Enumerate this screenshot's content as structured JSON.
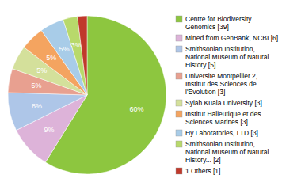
{
  "chart_data": {
    "type": "pie",
    "categories": [
      "Centre for Biodiversity\nGenomics [39]",
      "Mined from GenBank, NCBI [6]",
      "Smithsonian Institution,\nNational Museum of Natural\nHistory [5]",
      "Universite Montpellier 2,\nInstitut des Sciences de\nl'Evolution [3]",
      "Syiah Kuala University [3]",
      "Institut Halieutique et des\nSciences Marines [3]",
      "Hy Laboratories, LTD [3]",
      "Smithsonian Institution,\nNational Museum of Natural\nHistory... [2]",
      "1 Others [1]"
    ],
    "values": [
      60,
      9,
      8,
      5,
      5,
      5,
      5,
      3,
      2
    ],
    "value_labels": [
      "60%",
      "9%",
      "8%",
      "5%",
      "5%",
      "5%",
      "5%",
      "3%",
      null
    ],
    "colors": [
      "#8dc63f",
      "#ddb3d9",
      "#aec6e8",
      "#e8a090",
      "#d4e09b",
      "#f4a460",
      "#a8cce8",
      "#b8d96b",
      "#c0392b"
    ],
    "data_labels": true,
    "legend": "right"
  }
}
